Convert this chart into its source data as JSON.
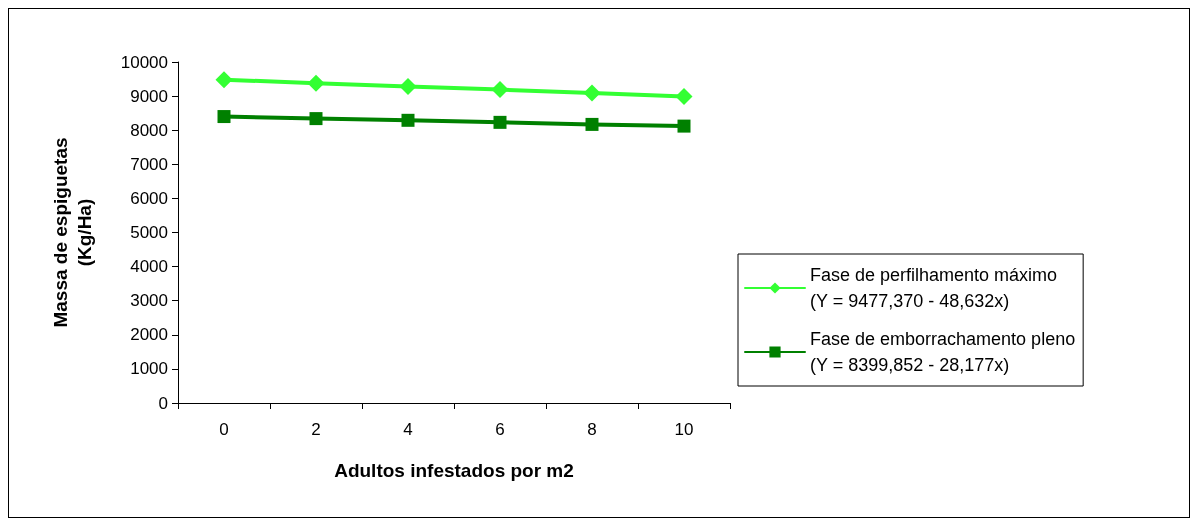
{
  "chart_data": {
    "type": "line",
    "xlabel": "Adultos infestados por m2",
    "ylabel": "Massa de espiguetas\n(Kg/Ha)",
    "categories": [
      "0",
      "2",
      "4",
      "6",
      "8",
      "10"
    ],
    "series": [
      {
        "name": "Fase de perfilhamento máximo\n(Y = 9477,370 - 48,632x)",
        "color": "#33ff33",
        "marker": "diamond",
        "values": [
          9480,
          9380,
          9280,
          9190,
          9090,
          8990
        ]
      },
      {
        "name": "Fase de emborrachamento pleno\n(Y = 8399,852 - 28,177x)",
        "color": "#008000",
        "marker": "square",
        "values": [
          8400,
          8340,
          8290,
          8230,
          8170,
          8120
        ]
      }
    ],
    "ylim": [
      0,
      10000
    ],
    "yticks": [
      0,
      1000,
      2000,
      3000,
      4000,
      5000,
      6000,
      7000,
      8000,
      9000,
      10000
    ],
    "grid": false,
    "legend": "right",
    "line_style": "solid"
  }
}
